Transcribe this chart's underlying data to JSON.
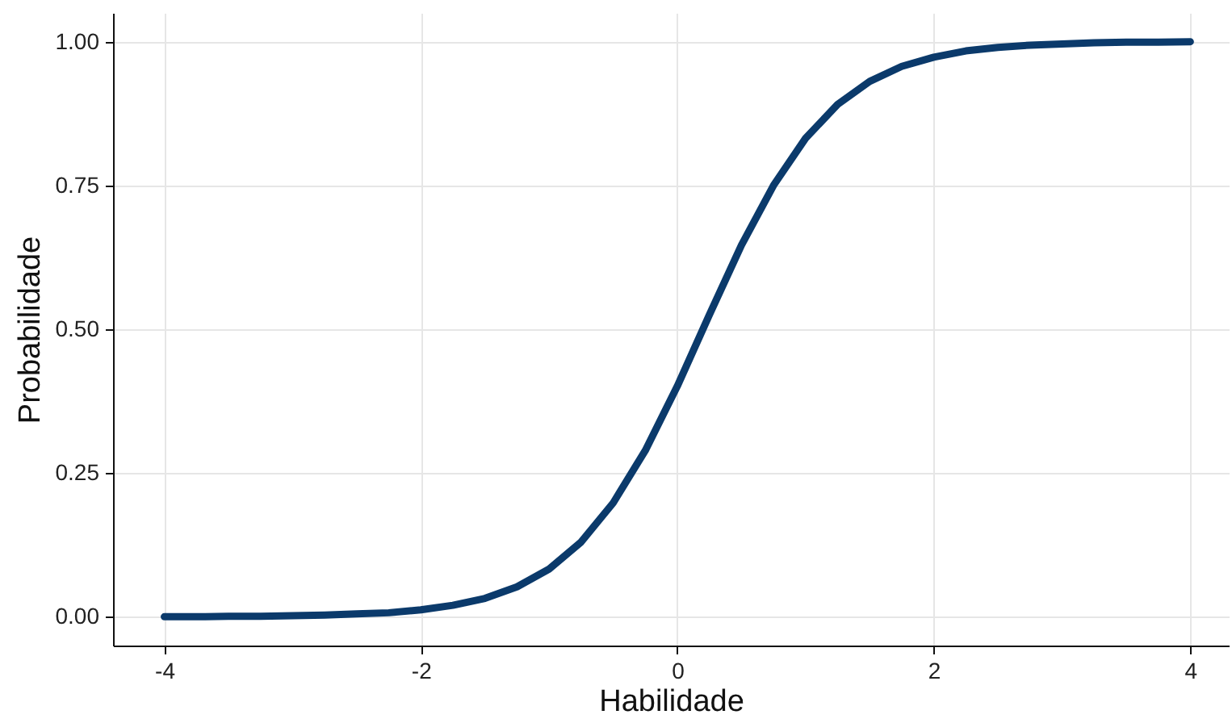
{
  "chart_data": {
    "type": "line",
    "xlabel": "Habilidade",
    "ylabel": "Probabilidade",
    "x": [
      -4,
      -3.75,
      -3.5,
      -3.25,
      -3,
      -2.75,
      -2.5,
      -2.25,
      -2,
      -1.75,
      -1.5,
      -1.25,
      -1,
      -0.75,
      -0.5,
      -0.25,
      0,
      0.25,
      0.5,
      0.75,
      1,
      1.25,
      1.5,
      1.75,
      2,
      2.25,
      2.5,
      2.75,
      3,
      3.25,
      3.5,
      3.75,
      4
    ],
    "series": [
      {
        "color": "#0b3a6b",
        "values": [
          0.0,
          0.0,
          0.001,
          0.001,
          0.002,
          0.003,
          0.005,
          0.007,
          0.012,
          0.02,
          0.032,
          0.052,
          0.083,
          0.13,
          0.198,
          0.289,
          0.401,
          0.525,
          0.646,
          0.75,
          0.832,
          0.891,
          0.931,
          0.957,
          0.973,
          0.984,
          0.99,
          0.994,
          0.996,
          0.998,
          0.999,
          0.999,
          1.0
        ]
      }
    ],
    "xlim": [
      -4.4,
      4.3
    ],
    "xticks": [
      -4,
      -2,
      0,
      2,
      4
    ],
    "ylim": [
      -0.05,
      1.05
    ],
    "yticks": [
      {
        "value": 0,
        "label": "0.00"
      },
      {
        "value": 0.25,
        "label": "0.25"
      },
      {
        "value": 0.5,
        "label": "0.50"
      },
      {
        "value": 0.75,
        "label": "0.75"
      },
      {
        "value": 1,
        "label": "1.00"
      }
    ],
    "grid": true,
    "marker": "none",
    "line_style": "solid"
  }
}
